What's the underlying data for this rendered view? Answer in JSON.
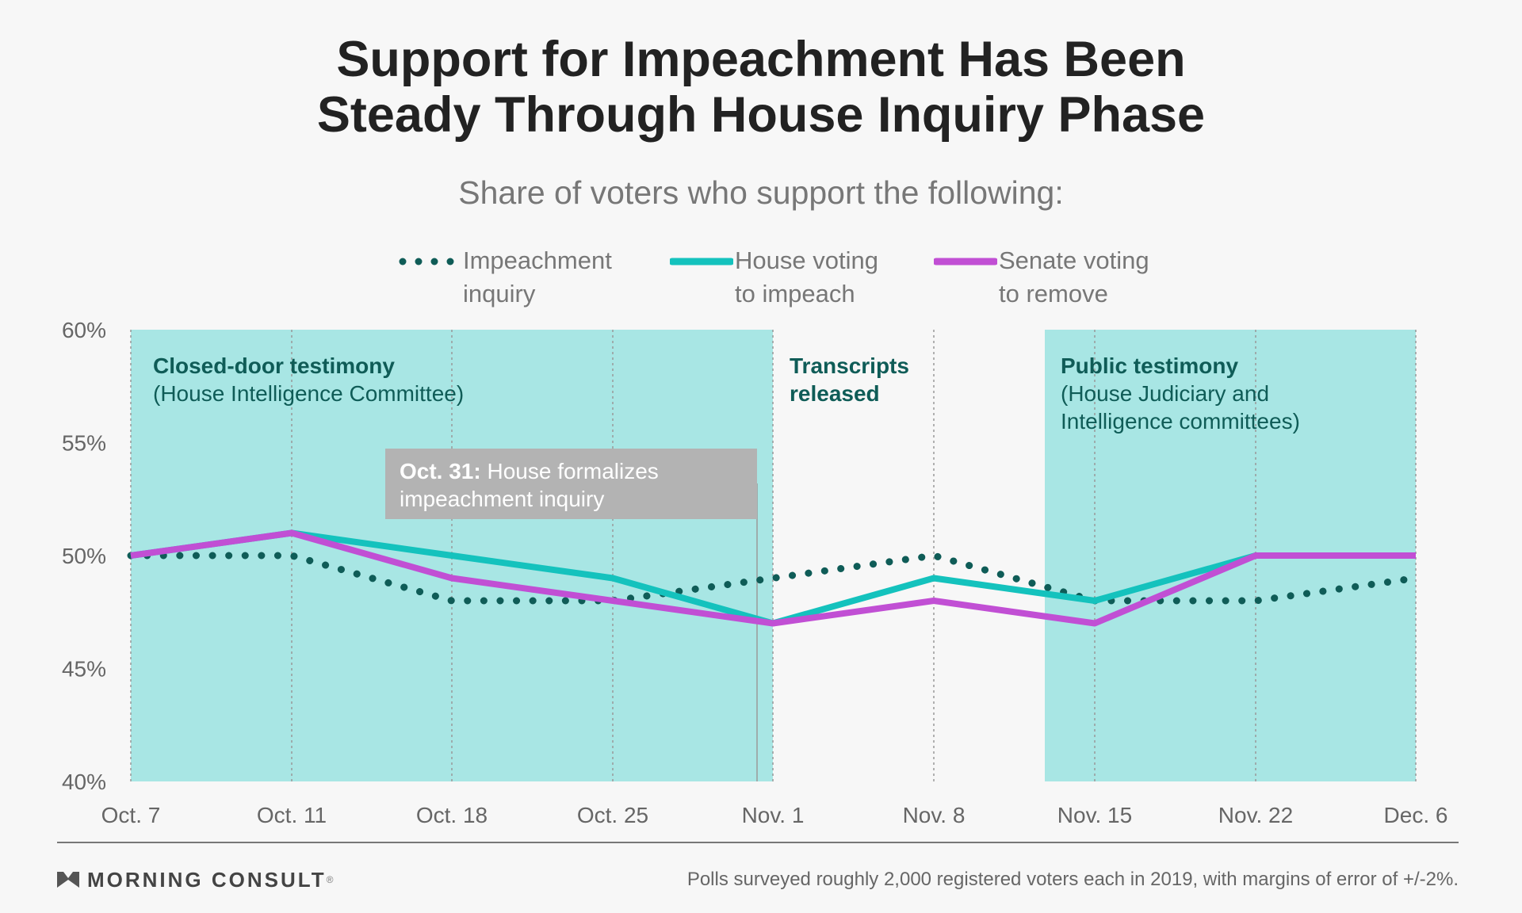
{
  "title_lines": [
    "Support for Impeachment Has Been",
    "Steady Through House Inquiry Phase"
  ],
  "subtitle": "Share of voters who support the following:",
  "legend": [
    {
      "line1": "Impeachment",
      "line2": "inquiry",
      "style": "dotted",
      "color": "#0f5c57"
    },
    {
      "line1": "House voting",
      "line2": "to impeach",
      "style": "solid",
      "color": "#14c2bd"
    },
    {
      "line1": "Senate voting",
      "line2": "to remove",
      "style": "solid",
      "color": "#c14fd4"
    }
  ],
  "annotations": {
    "closed_door": {
      "bold": "Closed-door testimony",
      "normal": "(House Intelligence Committee)"
    },
    "transcripts": {
      "line1": "Transcripts",
      "line2": "released"
    },
    "public": {
      "bold": "Public testimony",
      "line2": "(House Judiciary and",
      "line3": "Intelligence committees)"
    },
    "oct31": {
      "bold": "Oct. 31:",
      "rest": " House formalizes",
      "line2": "impeachment inquiry"
    }
  },
  "footer": {
    "brand": "MORNING CONSULT",
    "note": "Polls surveyed roughly 2,000 registered voters each in 2019, with margins of error of +/-2%."
  },
  "colors": {
    "shade": "#a8e6e4",
    "impeachment": "#0f5c57",
    "house": "#14c2bd",
    "senate": "#c14fd4",
    "annotation_text": "#0f5c57",
    "callout_bg": "#b3b3b3"
  },
  "chart_data": {
    "type": "line",
    "categories": [
      "Oct. 7",
      "Oct. 11",
      "Oct. 18",
      "Oct. 25",
      "Nov. 1",
      "Nov. 8",
      "Nov. 15",
      "Nov.  22",
      "Dec. 6"
    ],
    "y_tick_labels": [
      "60%",
      "55%",
      "50%",
      "45%",
      "40%"
    ],
    "ylim": [
      40,
      60
    ],
    "y_ticks": [
      60,
      55,
      50,
      45,
      40
    ],
    "series": [
      {
        "name": "Impeachment inquiry",
        "style": "dotted",
        "values": [
          50,
          50,
          48,
          48,
          49,
          50,
          48,
          48,
          49
        ]
      },
      {
        "name": "House voting to impeach",
        "style": "solid",
        "values": [
          50,
          51,
          50,
          49,
          47,
          49,
          48,
          50,
          50
        ]
      },
      {
        "name": "Senate voting to remove",
        "style": "solid",
        "values": [
          50,
          51,
          49,
          48,
          47,
          48,
          47,
          50,
          50
        ]
      }
    ],
    "shaded_periods": [
      {
        "label": "Closed-door testimony",
        "from": "Oct. 7",
        "to": "Nov. 1"
      },
      {
        "label": "Public testimony",
        "from_between": [
          "Nov. 8",
          "Nov. 15"
        ],
        "to": "Dec. 6"
      }
    ],
    "event_markers": [
      {
        "label": "Oct. 31",
        "between": [
          "Oct. 25",
          "Nov. 1"
        ]
      }
    ]
  }
}
